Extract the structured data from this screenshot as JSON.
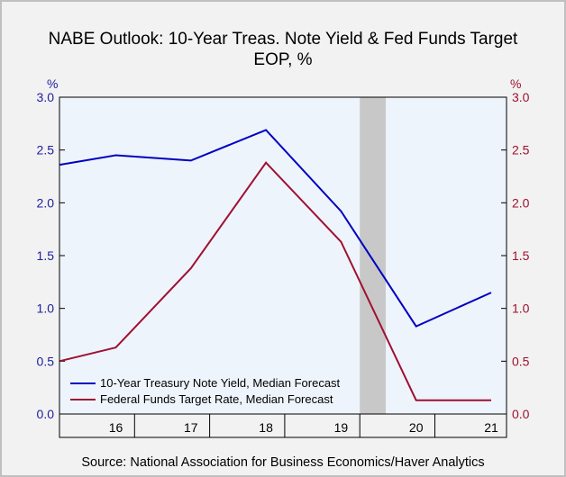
{
  "title": "NABE Outlook: 10-Year Treas. Note Yield & Fed Funds Target",
  "subtitle": "EOP, %",
  "source": "Source:  National Association for Business Economics/Haver Analytics",
  "chart_data": {
    "type": "line",
    "x": [
      "2016-Q1",
      "2016-Q4",
      "2017-Q4",
      "2018-Q4",
      "2019-Q4",
      "2020-Q4",
      "2021-Q4"
    ],
    "categories": [
      "16",
      "17",
      "18",
      "19",
      "20",
      "21"
    ],
    "left_axis_unit": "%",
    "right_axis_unit": "%",
    "ylim": [
      0,
      3
    ],
    "yticks": [
      "0.0",
      "0.5",
      "1.0",
      "1.5",
      "2.0",
      "2.5",
      "3.0"
    ],
    "recession_shading": {
      "from": "2020-Q1",
      "to": "2020-Q2"
    },
    "colors": {
      "yield": "#0000c0",
      "fedfunds": "#a01030",
      "shade": "#c8c8c8",
      "plot_bg": "#eef4fc"
    },
    "series": [
      {
        "name": "10-Year Treasury Note Yield, Median Forecast",
        "color": "#0000c0",
        "points": [
          [
            "2016-Q1",
            2.36
          ],
          [
            "2016-Q4",
            2.45
          ],
          [
            "2017-Q4",
            2.4
          ],
          [
            "2018-Q4",
            2.69
          ],
          [
            "2019-Q4",
            1.92
          ],
          [
            "2020-Q4",
            0.83
          ],
          [
            "2021-Q4",
            1.15
          ]
        ]
      },
      {
        "name": "Federal Funds Target Rate, Median Forecast",
        "color": "#a01030",
        "points": [
          [
            "2016-Q1",
            0.5
          ],
          [
            "2016-Q4",
            0.63
          ],
          [
            "2017-Q4",
            1.38
          ],
          [
            "2018-Q4",
            2.38
          ],
          [
            "2019-Q4",
            1.63
          ],
          [
            "2020-Q4",
            0.13
          ],
          [
            "2021-Q4",
            0.13
          ]
        ]
      }
    ],
    "legend": "bottom-left",
    "grid": false
  }
}
